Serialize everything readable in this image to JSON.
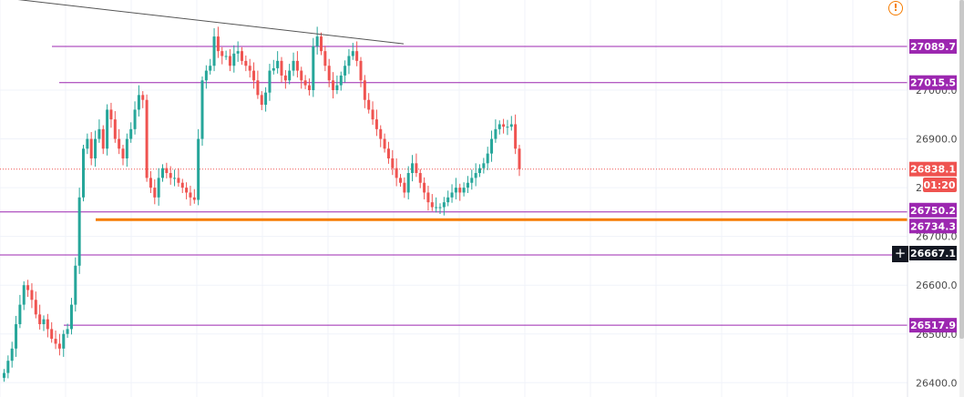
{
  "chart_data": {
    "type": "candlestick",
    "y_ticks": [
      "27000.0",
      "26900.0",
      "26800.0",
      "26700.0",
      "26600.0",
      "26500.0",
      "26400.0"
    ],
    "price_tags": [
      {
        "label": "27089.7",
        "value": 27089.7,
        "color": "#9c27b0"
      },
      {
        "label": "27015.5",
        "value": 27015.5,
        "color": "#9c27b0"
      },
      {
        "label": "26838.1",
        "value": 26838.1,
        "color": "#ef5350"
      },
      {
        "label": "26750.2",
        "value": 26750.2,
        "color": "#9c27b0"
      },
      {
        "label": "26734.3",
        "value": 26734.3,
        "color": "#9c27b0"
      },
      {
        "label": "26667.1",
        "value": 26667.1,
        "color": "#131722"
      },
      {
        "label": "26517.9",
        "value": 26517.9,
        "color": "#9c27b0"
      }
    ],
    "countdown": "01:20",
    "last_price": 26838.1,
    "horizontal_levels": [
      {
        "value": 27089.7,
        "color": "#9c27b0"
      },
      {
        "value": 27015.5,
        "color": "#9c27b0"
      },
      {
        "value": 26750.2,
        "color": "#9c27b0"
      },
      {
        "value": 26734.3,
        "color": "#f57c00"
      },
      {
        "value": 26662.0,
        "color": "#9c27b0"
      },
      {
        "value": 26517.9,
        "color": "#9c27b0"
      }
    ],
    "trend_line": {
      "from_price": 27190,
      "to_price": 27095
    },
    "closes": [
      26420,
      26445,
      26470,
      26520,
      26560,
      26600,
      26590,
      26570,
      26540,
      26520,
      26530,
      26510,
      26490,
      26480,
      26470,
      26500,
      26510,
      26560,
      26640,
      26780,
      26880,
      26900,
      26860,
      26900,
      26920,
      26880,
      26960,
      26940,
      26900,
      26880,
      26860,
      26900,
      26920,
      26960,
      26990,
      26980,
      26820,
      26800,
      26780,
      26820,
      26840,
      26830,
      26820,
      26820,
      26810,
      26800,
      26790,
      26780,
      26775,
      26900,
      27020,
      27040,
      27050,
      27110,
      27080,
      27070,
      27070,
      27050,
      27075,
      27080,
      27060,
      27050,
      27040,
      27020,
      26990,
      26970,
      26995,
      27040,
      27045,
      27060,
      27030,
      27020,
      27040,
      27060,
      27040,
      27020,
      27010,
      27000,
      27090,
      27110,
      27080,
      27050,
      27020,
      27000,
      27010,
      27030,
      27050,
      27070,
      27080,
      27060,
      27020,
      26980,
      26960,
      26940,
      26920,
      26900,
      26880,
      26860,
      26840,
      26820,
      26810,
      26790,
      26830,
      26850,
      26830,
      26810,
      26790,
      26770,
      26760,
      26760,
      26760,
      26770,
      26780,
      26790,
      26800,
      26790,
      26800,
      26810,
      26820,
      26830,
      26840,
      26850,
      26870,
      26900,
      26920,
      26930,
      26925,
      26925,
      26930,
      26880,
      26838
    ]
  }
}
